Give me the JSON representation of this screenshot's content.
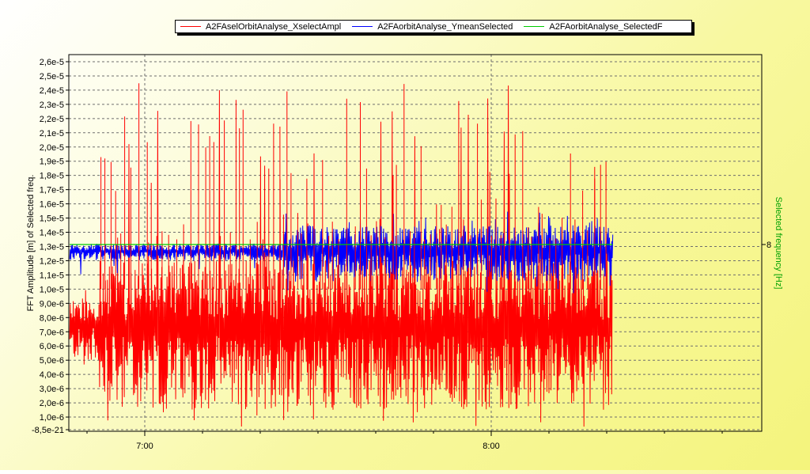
{
  "chart_data": {
    "type": "line",
    "ylabel": "FFT Amplitude [m] of Selected freq.",
    "y2label": "Selected frequency [Hz]",
    "y_ticks": [
      "2,6e-5",
      "2,5e-5",
      "2,4e-5",
      "2,3e-5",
      "2,2e-5",
      "2,1e-5",
      "2,0e-5",
      "1,9e-5",
      "1,8e-5",
      "1,7e-5",
      "1,6e-5",
      "1,5e-5",
      "1,4e-5",
      "1,3e-5",
      "1,2e-5",
      "1,1e-5",
      "1,0e-5",
      "9,0e-6",
      "8,0e-6",
      "7,0e-6",
      "6,0e-6",
      "5,0e-6",
      "4,0e-6",
      "3,0e-6",
      "2,0e-6",
      "1,0e-6",
      "-8,5e-21"
    ],
    "y2_ticks": [
      "8"
    ],
    "x_ticks": [
      "7:00",
      "8:00"
    ],
    "ylim": [
      0,
      2.65e-05
    ],
    "grid": true,
    "legend_position": "top",
    "series": [
      {
        "name": "A2FAselOrbitAnalyse_XselectAmpl",
        "color": "#ff0000",
        "segments": [
          {
            "t_start": "6:47",
            "t_end": "6:52",
            "low": 5e-06,
            "high": 9.5e-06,
            "spike_max": 1.1e-05
          },
          {
            "t_start": "6:52",
            "t_end": "8:21",
            "low": 1.5e-06,
            "high": 1.2e-05,
            "spike_max": 2.45e-05
          }
        ]
      },
      {
        "name": "A2FAorbitAnalyse_YmeanSelected",
        "color": "#0000ff",
        "segments": [
          {
            "t_start": "6:47",
            "t_end": "7:24",
            "low": 1.2e-05,
            "high": 1.32e-05,
            "spike_max": 1.32e-05
          },
          {
            "t_start": "7:24",
            "t_end": "8:21",
            "low": 1.05e-05,
            "high": 1.45e-05,
            "spike_max": 1.55e-05
          }
        ]
      },
      {
        "name": "A2FAorbitAnalyse_SelectedF",
        "color": "#00cc00",
        "axis": "right",
        "value": 8,
        "t_start": "6:47",
        "t_end": "8:21"
      }
    ]
  }
}
